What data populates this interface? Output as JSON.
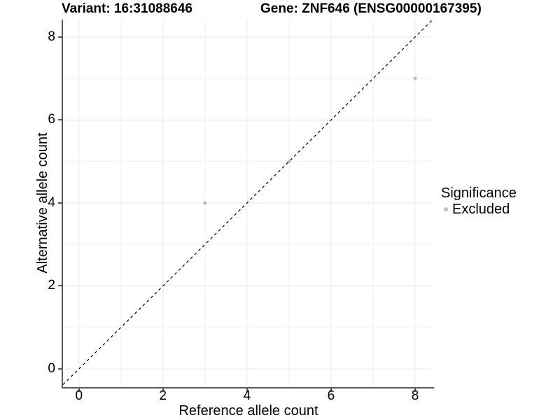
{
  "header": {
    "variant_title": "Variant: 16:31088646",
    "gene_title": "Gene: ZNF646 (ENSG00000167395)"
  },
  "axes": {
    "x": {
      "label": "Reference allele count",
      "ticks": [
        0,
        2,
        4,
        6,
        8
      ]
    },
    "y": {
      "label": "Alternative allele count",
      "ticks": [
        0,
        2,
        4,
        6,
        8
      ]
    }
  },
  "legend": {
    "title": "Significance",
    "entries": [
      {
        "label": "Excluded",
        "color": "#bebebe"
      }
    ]
  },
  "chart_data": {
    "type": "scatter",
    "title_left": "Variant: 16:31088646",
    "title_right": "Gene: ZNF646 (ENSG00000167395)",
    "xlabel": "Reference allele count",
    "ylabel": "Alternative allele count",
    "xlim": [
      -0.38,
      8.45
    ],
    "ylim": [
      -0.44,
      8.42
    ],
    "x_ticks": [
      0,
      2,
      4,
      6,
      8
    ],
    "y_ticks": [
      0,
      2,
      4,
      6,
      8
    ],
    "grid": "on",
    "legend_position": "right",
    "series": [
      {
        "name": "Excluded",
        "color": "#bebebe",
        "points": [
          [
            3,
            4
          ],
          [
            5,
            5
          ],
          [
            8,
            7
          ]
        ]
      }
    ],
    "reference_line": {
      "type": "identity",
      "slope": 1,
      "intercept": 0,
      "style": "dashed",
      "color": "#000000"
    }
  },
  "colors": {
    "background": "#ffffff",
    "axis": "#595959",
    "grid_major": "#e7e7e7",
    "grid_minor": "#f2f2f2",
    "point": "#bebebe",
    "dashed_line": "#000000",
    "text": "#000000"
  }
}
